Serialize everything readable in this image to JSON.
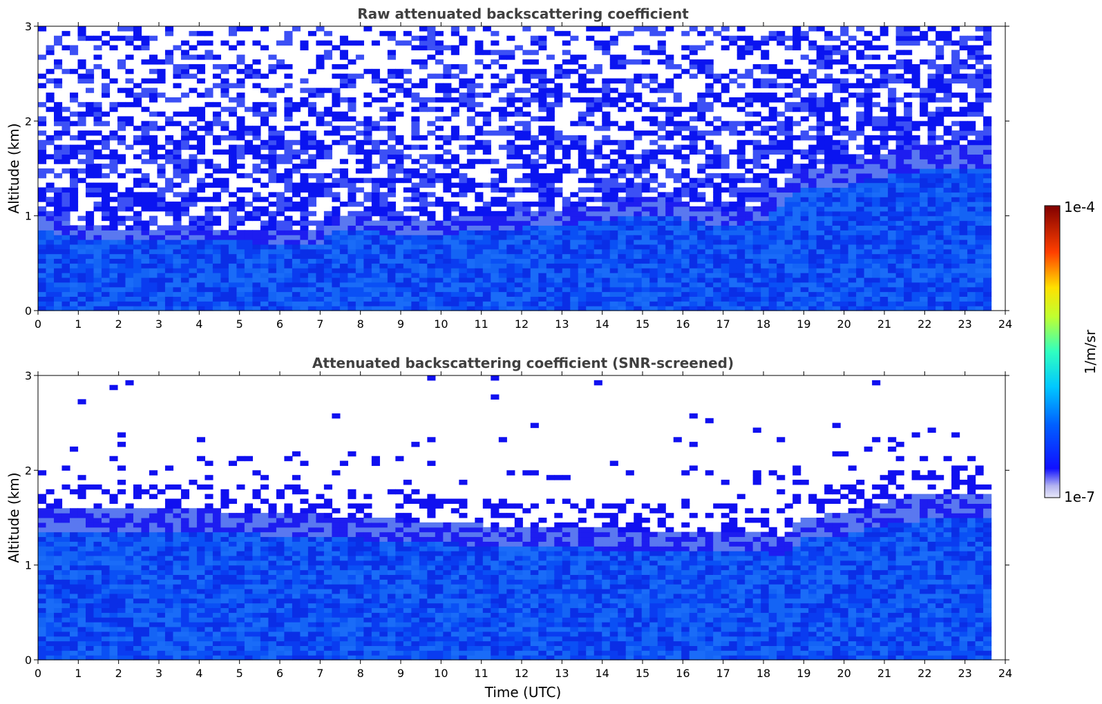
{
  "chart_data": [
    {
      "type": "heatmap",
      "title": "Raw attenuated backscattering coefficient",
      "xlabel": "",
      "ylabel": "Altitude (km)",
      "xlim": [
        0,
        24
      ],
      "ylim": [
        0,
        3
      ],
      "x_ticks": [
        "0",
        "1",
        "2",
        "3",
        "4",
        "5",
        "6",
        "7",
        "8",
        "9",
        "10",
        "11",
        "12",
        "13",
        "14",
        "15",
        "16",
        "17",
        "18",
        "19",
        "20",
        "21",
        "22",
        "23",
        "24"
      ],
      "y_ticks": [
        "0",
        "1",
        "2",
        "3"
      ],
      "data_end_time": 23.65,
      "signal_top_km": [
        [
          0,
          1.02
        ],
        [
          1,
          0.9
        ],
        [
          2,
          0.87
        ],
        [
          3,
          0.86
        ],
        [
          4,
          0.86
        ],
        [
          5,
          0.86
        ],
        [
          6,
          0.84
        ],
        [
          7,
          0.85
        ],
        [
          7.5,
          1.02
        ],
        [
          8,
          1.0
        ],
        [
          9,
          0.93
        ],
        [
          10,
          0.95
        ],
        [
          11,
          1.0
        ],
        [
          12,
          1.03
        ],
        [
          13,
          1.07
        ],
        [
          14,
          1.12
        ],
        [
          15,
          1.2
        ],
        [
          16,
          1.15
        ],
        [
          17,
          1.05
        ],
        [
          18,
          1.12
        ],
        [
          18.5,
          1.35
        ],
        [
          19,
          1.5
        ],
        [
          20,
          1.55
        ],
        [
          21,
          1.67
        ],
        [
          22,
          1.75
        ],
        [
          23,
          1.76
        ],
        [
          23.65,
          1.76
        ]
      ],
      "noise": "heavy",
      "grid": false
    },
    {
      "type": "heatmap",
      "title": "Attenuated backscattering coefficient (SNR-screened)",
      "xlabel": "Time (UTC)",
      "ylabel": "Altitude (km)",
      "xlim": [
        0,
        24
      ],
      "ylim": [
        0,
        3
      ],
      "x_ticks": [
        "0",
        "1",
        "2",
        "3",
        "4",
        "5",
        "6",
        "7",
        "8",
        "9",
        "10",
        "11",
        "12",
        "13",
        "14",
        "15",
        "16",
        "17",
        "18",
        "19",
        "20",
        "21",
        "22",
        "23",
        "24"
      ],
      "y_ticks": [
        "0",
        "1",
        "2",
        "3"
      ],
      "data_end_time": 23.65,
      "signal_top_km": [
        [
          0,
          1.6
        ],
        [
          3,
          1.6
        ],
        [
          6,
          1.55
        ],
        [
          8,
          1.5
        ],
        [
          10,
          1.45
        ],
        [
          12,
          1.4
        ],
        [
          14,
          1.38
        ],
        [
          16,
          1.35
        ],
        [
          18.5,
          1.32
        ],
        [
          19,
          1.5
        ],
        [
          20,
          1.55
        ],
        [
          21,
          1.67
        ],
        [
          22,
          1.75
        ],
        [
          23,
          1.76
        ],
        [
          23.65,
          1.76
        ]
      ],
      "noise": "screened",
      "grid": false
    }
  ],
  "colorbar": {
    "label": "1/m/sr",
    "max_label": "1e-4",
    "min_label": "1e-7",
    "colormap": "jet",
    "scale": "log"
  }
}
